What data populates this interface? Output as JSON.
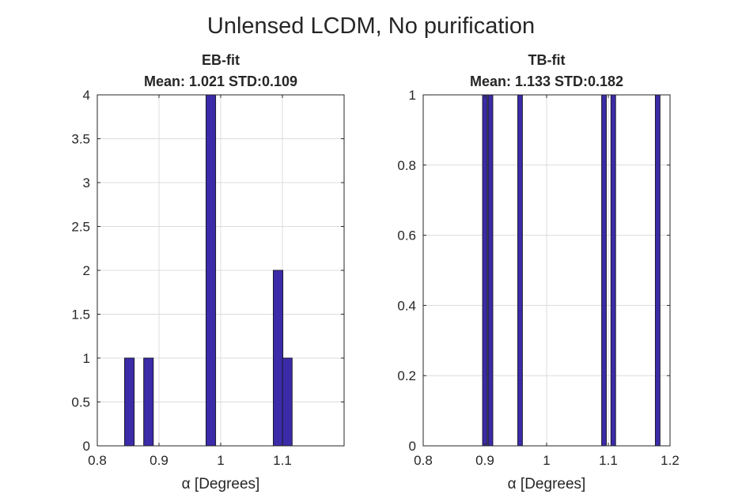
{
  "figure": {
    "suptitle": "Unlensed LCDM, No purification"
  },
  "colors": {
    "bar_fill": "#3b2ba8",
    "bar_edge": "#1a1a2e",
    "axis": "#262626",
    "grid": "#dcdcdc",
    "background": "#ffffff"
  },
  "chart_data": [
    {
      "type": "bar",
      "title": "EB-fit",
      "subtitle": "Mean: 1.021 STD:0.109",
      "xlabel": "α [Degrees]",
      "ylabel": "",
      "xlim": [
        0.8,
        1.2
      ],
      "ylim": [
        0,
        4
      ],
      "xticks": [
        0.8,
        0.9,
        1.0,
        1.1
      ],
      "xtick_labels": [
        "0.8",
        "0.9",
        "1",
        "1.1"
      ],
      "yticks": [
        0,
        0.5,
        1,
        1.5,
        2,
        2.5,
        3,
        3.5,
        4
      ],
      "ytick_labels": [
        "0",
        "0.5",
        "1",
        "1.5",
        "2",
        "2.5",
        "3",
        "3.5",
        "4"
      ],
      "grid": true,
      "bin_width": 0.0155,
      "x": [
        0.852,
        0.883,
        0.984,
        1.093,
        1.108
      ],
      "values": [
        1,
        1,
        4,
        2,
        1
      ]
    },
    {
      "type": "bar",
      "title": "TB-fit",
      "subtitle": "Mean: 1.133 STD:0.182",
      "xlabel": "α [Degrees]",
      "ylabel": "",
      "xlim": [
        0.8,
        1.2
      ],
      "ylim": [
        0,
        1
      ],
      "xticks": [
        0.8,
        0.9,
        1.0,
        1.1,
        1.2
      ],
      "xtick_labels": [
        "0.8",
        "0.9",
        "1",
        "1.1",
        "1.2"
      ],
      "yticks": [
        0,
        0.2,
        0.4,
        0.6,
        0.8,
        1
      ],
      "ytick_labels": [
        "0",
        "0.2",
        "0.4",
        "0.6",
        "0.8",
        "1"
      ],
      "grid": true,
      "bin_width": 0.0075,
      "x": [
        0.9,
        0.909,
        0.957,
        1.093,
        1.108,
        1.18
      ],
      "values": [
        1,
        1,
        1,
        1,
        1,
        1
      ]
    }
  ]
}
